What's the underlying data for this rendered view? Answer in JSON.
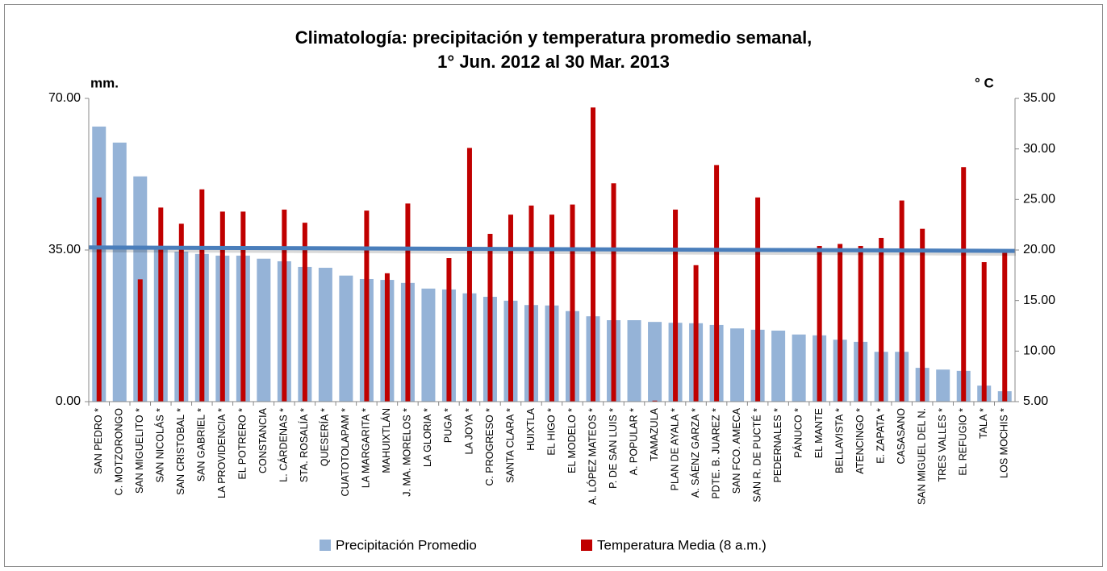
{
  "chart_data": {
    "type": "bar",
    "title": [
      "Climatología: precipitación y temperatura promedio semanal,",
      "1° Jun. 2012 al 30 Mar. 2013"
    ],
    "ylabel": "mm.",
    "y2label": "° C",
    "categories": [
      "SAN PEDRO *",
      "C. MOTZORONGO",
      "SAN MIGUELITO *",
      "SAN NICOLÁS *",
      "SAN CRISTOBAL *",
      "SAN GABRIEL *",
      "LA PROVIDENCIA *",
      "EL POTRERO *",
      "CONSTANCIA",
      "L. CÁRDENAS *",
      "STA. ROSALÍA *",
      "QUESERÍA *",
      "CUATOTOLAPAM *",
      "LA MARGARITA *",
      "MAHUIXTLÁN",
      "J. MA. MORELOS *",
      "LA GLORIA *",
      "PUGA *",
      "LA JOYA *",
      "C. PROGRESO *",
      "SANTA CLARA *",
      "HUIXTLA",
      "EL HIGO *",
      "EL MODELO *",
      "A. LÓPEZ MATEOS *",
      "P. DE SAN LUIS *",
      "A. POPULAR *",
      "TAMAZULA",
      "PLAN DE AYALA *",
      "A. SÁENZ GARZA *",
      "PDTE. B. JUAREZ *",
      "SAN FCO. AMECA",
      "SAN R. DE PUCTÉ *",
      "PEDERNALES *",
      "PÁNUCO *",
      "EL MANTE",
      "BELLAVISTA *",
      "ATENCINGO *",
      "E. ZAPATA *",
      "CASASANO",
      "SAN MIGUEL DEL N.",
      "TRES VALLES *",
      "EL REFUGIO *",
      "TALA *",
      "LOS MOCHIS *"
    ],
    "series": [
      {
        "name": "Precipitación Promedio",
        "color": "#95b3d7",
        "values": [
          63.5,
          59.8,
          52.0,
          35.9,
          34.6,
          34.1,
          33.7,
          33.7,
          33.0,
          32.4,
          31.1,
          30.9,
          29.1,
          28.3,
          28.1,
          27.4,
          26.1,
          25.9,
          25.0,
          24.2,
          23.3,
          22.3,
          22.2,
          20.9,
          19.7,
          18.8,
          18.8,
          18.4,
          18.2,
          18.1,
          17.7,
          16.9,
          16.6,
          16.4,
          15.5,
          15.3,
          14.3,
          13.8,
          11.5,
          11.5,
          7.8,
          7.4,
          7.1,
          3.7,
          2.4
        ]
      },
      {
        "name": "Temperatura Media (8 a.m.)",
        "color": "#c00000",
        "axis": "y2",
        "values": [
          25.2,
          null,
          17.1,
          24.2,
          22.6,
          26.0,
          23.8,
          23.8,
          null,
          24.0,
          22.7,
          null,
          null,
          23.9,
          17.7,
          24.6,
          null,
          19.2,
          30.1,
          21.6,
          23.5,
          24.4,
          23.5,
          24.5,
          34.1,
          26.6,
          null,
          5.1,
          24.0,
          18.5,
          28.4,
          null,
          25.2,
          null,
          null,
          20.4,
          20.6,
          20.4,
          21.2,
          24.9,
          22.1,
          null,
          28.2,
          18.8,
          19.8
        ]
      }
    ],
    "trend": {
      "color": "#4a7ebb",
      "values": [
        35.6,
        34.8
      ]
    },
    "ylim": [
      0,
      70
    ],
    "yticks": [
      {
        "value": 0,
        "label": "0.00"
      },
      {
        "value": 35,
        "label": "35.00"
      },
      {
        "value": 70,
        "label": "70.00"
      }
    ],
    "y2lim": [
      5,
      35
    ],
    "y2ticks": [
      {
        "value": 5,
        "label": "5.00"
      },
      {
        "value": 10,
        "label": "10.00"
      },
      {
        "value": 15,
        "label": "15.00"
      },
      {
        "value": 20,
        "label": "20.00"
      },
      {
        "value": 25,
        "label": "25.00"
      },
      {
        "value": 30,
        "label": "30.00"
      },
      {
        "value": 35,
        "label": "35.00"
      }
    ],
    "legend": "bottom"
  }
}
